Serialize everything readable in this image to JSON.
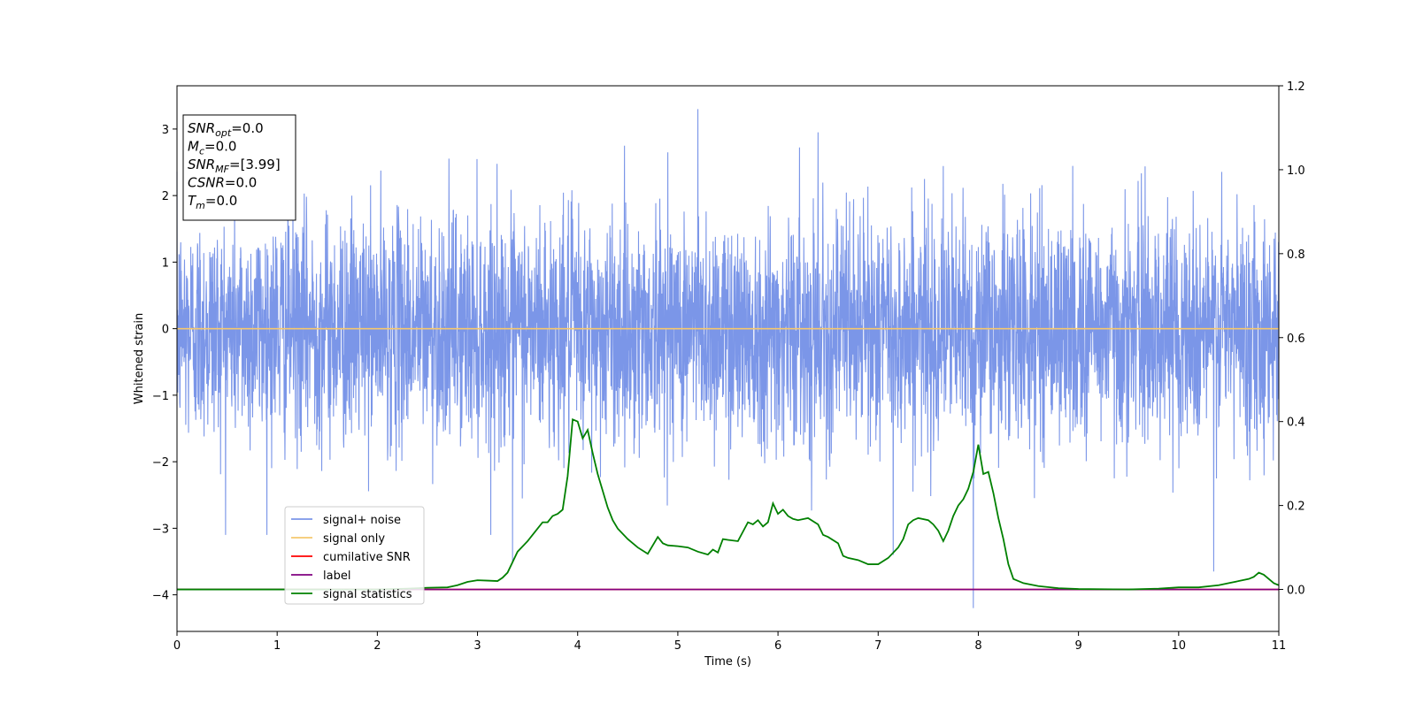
{
  "chart_data": {
    "type": "line",
    "title": "",
    "xlabel": "Time (s)",
    "ylabel": "Whitened strain",
    "xlim": [
      0,
      11
    ],
    "ylim": [
      -4.55,
      3.65
    ],
    "y2lim": [
      -0.1,
      1.2
    ],
    "x_ticks": [
      0,
      1,
      2,
      3,
      4,
      5,
      6,
      7,
      8,
      9,
      10,
      11
    ],
    "x_tick_labels": [
      "0",
      "1",
      "2",
      "3",
      "4",
      "5",
      "6",
      "7",
      "8",
      "9",
      "10",
      "11"
    ],
    "y_ticks": [
      -4,
      -3,
      -2,
      -1,
      0,
      1,
      2,
      3
    ],
    "y_tick_labels": [
      "−4",
      "−3",
      "−2",
      "−1",
      "0",
      "1",
      "2",
      "3"
    ],
    "y2_ticks": [
      0.0,
      0.2,
      0.4,
      0.6,
      0.8,
      1.0,
      1.2
    ],
    "y2_tick_labels": [
      "0.0",
      "0.2",
      "0.4",
      "0.6",
      "0.8",
      "1.0",
      "1.2"
    ],
    "grid": false,
    "legend_position": "lower-left",
    "info_box": {
      "lines": [
        {
          "sym": "SNR",
          "sub": "opt",
          "rest": "=0.0"
        },
        {
          "sym": "M",
          "sub": "c",
          "rest": "=0.0"
        },
        {
          "sym": "SNR",
          "sub": "MF",
          "rest": "=[3.99]"
        },
        {
          "sym": "CSNR",
          "sub": "",
          "rest": "=0.0"
        },
        {
          "sym": "T",
          "sub": "m",
          "rest": "=0.0"
        }
      ]
    },
    "series": [
      {
        "name": "signal+ noise",
        "color": "#7b96e8",
        "axis": "left",
        "noise": {
          "amplitude_typical": 1.0,
          "max_peak": 3.3,
          "min_peak": -4.2,
          "peak_events": [
            [
              5.2,
              3.3
            ],
            [
              7.95,
              -4.2
            ],
            [
              4.9,
              2.65
            ],
            [
              6.4,
              2.95
            ],
            [
              7.15,
              -3.4
            ],
            [
              3.35,
              -3.5
            ],
            [
              10.35,
              -3.65
            ]
          ]
        }
      },
      {
        "name": "signal only",
        "color": "#f5c86e",
        "axis": "left",
        "x": [
          0,
          11
        ],
        "y": [
          0,
          0
        ]
      },
      {
        "name": "cumilative SNR",
        "color": "#ff0000",
        "axis": "right",
        "x": [
          0,
          11
        ],
        "y": [
          0,
          0
        ]
      },
      {
        "name": "label",
        "color": "#800080",
        "axis": "right",
        "x": [
          0,
          11
        ],
        "y": [
          0,
          0
        ]
      },
      {
        "name": "signal statistics",
        "color": "#008000",
        "axis": "right",
        "x": [
          0,
          0.5,
          1.0,
          1.5,
          2.0,
          2.3,
          2.5,
          2.7,
          2.8,
          2.9,
          3.0,
          3.1,
          3.2,
          3.25,
          3.3,
          3.35,
          3.4,
          3.5,
          3.6,
          3.65,
          3.7,
          3.75,
          3.8,
          3.85,
          3.9,
          3.95,
          4.0,
          4.05,
          4.1,
          4.15,
          4.2,
          4.25,
          4.3,
          4.35,
          4.4,
          4.5,
          4.6,
          4.7,
          4.8,
          4.85,
          4.9,
          5.0,
          5.1,
          5.2,
          5.3,
          5.35,
          5.4,
          5.45,
          5.5,
          5.6,
          5.7,
          5.75,
          5.8,
          5.85,
          5.9,
          5.95,
          6.0,
          6.05,
          6.1,
          6.15,
          6.2,
          6.3,
          6.4,
          6.45,
          6.5,
          6.6,
          6.65,
          6.7,
          6.8,
          6.9,
          7.0,
          7.1,
          7.2,
          7.25,
          7.3,
          7.35,
          7.4,
          7.5,
          7.55,
          7.6,
          7.65,
          7.7,
          7.75,
          7.8,
          7.85,
          7.9,
          7.95,
          8.0,
          8.05,
          8.1,
          8.15,
          8.2,
          8.25,
          8.3,
          8.35,
          8.45,
          8.6,
          8.8,
          9.0,
          9.5,
          9.8,
          10.0,
          10.2,
          10.4,
          10.5,
          10.6,
          10.7,
          10.75,
          10.8,
          10.85,
          10.9,
          10.95,
          11.0
        ],
        "y": [
          0.0,
          0.0,
          0.0,
          0.0,
          0.0,
          0.002,
          0.004,
          0.005,
          0.01,
          0.018,
          0.022,
          0.021,
          0.02,
          0.028,
          0.04,
          0.065,
          0.09,
          0.115,
          0.145,
          0.16,
          0.16,
          0.175,
          0.18,
          0.19,
          0.27,
          0.405,
          0.4,
          0.36,
          0.38,
          0.325,
          0.275,
          0.235,
          0.195,
          0.165,
          0.145,
          0.12,
          0.1,
          0.085,
          0.125,
          0.11,
          0.105,
          0.103,
          0.1,
          0.09,
          0.083,
          0.095,
          0.088,
          0.12,
          0.118,
          0.115,
          0.16,
          0.155,
          0.165,
          0.15,
          0.16,
          0.205,
          0.18,
          0.19,
          0.175,
          0.168,
          0.165,
          0.17,
          0.155,
          0.13,
          0.125,
          0.11,
          0.08,
          0.075,
          0.07,
          0.06,
          0.06,
          0.075,
          0.1,
          0.12,
          0.155,
          0.165,
          0.17,
          0.165,
          0.155,
          0.14,
          0.115,
          0.14,
          0.175,
          0.2,
          0.215,
          0.24,
          0.28,
          0.345,
          0.275,
          0.28,
          0.23,
          0.17,
          0.12,
          0.06,
          0.025,
          0.015,
          0.008,
          0.003,
          0.001,
          0.0,
          0.002,
          0.005,
          0.005,
          0.01,
          0.015,
          0.02,
          0.025,
          0.03,
          0.04,
          0.035,
          0.025,
          0.015,
          0.01
        ]
      }
    ]
  }
}
